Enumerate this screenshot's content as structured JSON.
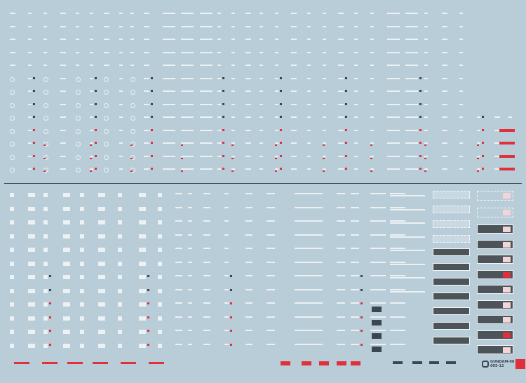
{
  "sheet": {
    "background": "#b9cdd8",
    "mark_colors": {
      "white": "#f4f7f9",
      "dark": "#3b4750",
      "red": "#e0303c"
    },
    "logo": {
      "line1": "GUNDAM-00",
      "line2": "005-12"
    }
  }
}
